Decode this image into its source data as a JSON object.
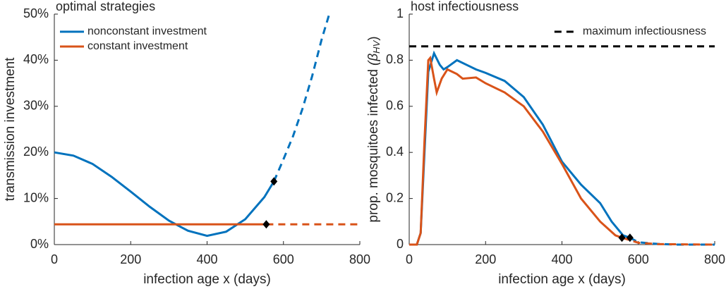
{
  "chart_data": [
    {
      "type": "line",
      "title": "optimal strategies",
      "xlabel": "infection age x (days)",
      "ylabel": "transmission investment",
      "xlim": [
        0,
        800
      ],
      "xticks": [
        0,
        200,
        400,
        600,
        800
      ],
      "ylim": [
        0,
        50
      ],
      "yticks": [
        {
          "value": 0,
          "label": "0%"
        },
        {
          "value": 10,
          "label": "10%"
        },
        {
          "value": 20,
          "label": "20%"
        },
        {
          "value": 30,
          "label": "30%"
        },
        {
          "value": 40,
          "label": "40%"
        },
        {
          "value": 50,
          "label": "50%"
        }
      ],
      "legend": "upper left",
      "series": [
        {
          "name": "nonconstant investment",
          "color": "#0072BD",
          "x": [
            0,
            50,
            100,
            150,
            200,
            250,
            300,
            350,
            400,
            450,
            500,
            550,
            575
          ],
          "values": [
            20,
            19.3,
            17.5,
            14.7,
            11.5,
            8.2,
            5.2,
            3,
            1.9,
            2.8,
            5.5,
            10.3,
            13.7
          ],
          "extension": {
            "x": [
              575,
              600,
              625,
              650,
              675,
              700,
              720
            ],
            "values": [
              13.7,
              18.5,
              23.5,
              29.5,
              36.5,
              44.5,
              50
            ]
          },
          "marker": {
            "x": 575,
            "y": 13.7
          }
        },
        {
          "name": "constant investment",
          "color": "#D95319",
          "x": [
            0,
            555
          ],
          "values": [
            4.4,
            4.4
          ],
          "extension": {
            "x": [
              555,
              800
            ],
            "values": [
              4.4,
              4.4
            ]
          },
          "marker": {
            "x": 555,
            "y": 4.4
          }
        }
      ]
    },
    {
      "type": "line",
      "title": "host infectiousness",
      "xlabel": "infection age x (days)",
      "ylabel": "prop. mosquitoes infected",
      "ylabel_symbol": "(β",
      "ylabel_subscript": "HV",
      "ylabel_close": ")",
      "xlim": [
        0,
        800
      ],
      "xticks": [
        0,
        200,
        400,
        600,
        800
      ],
      "ylim": [
        0,
        1
      ],
      "yticks": [
        0,
        0.2,
        0.4,
        0.6,
        0.8,
        1
      ],
      "legend": "upper right",
      "threshold": {
        "name": "maximum infectiousness",
        "value": 0.86,
        "color": "#000000"
      },
      "series": [
        {
          "color": "#0072BD",
          "x": [
            0,
            20,
            30,
            40,
            50,
            65,
            80,
            90,
            100,
            125,
            150,
            175,
            200,
            250,
            300,
            350,
            400,
            450,
            500,
            530,
            560,
            578
          ],
          "values": [
            0,
            0,
            0.05,
            0.4,
            0.75,
            0.83,
            0.78,
            0.76,
            0.77,
            0.8,
            0.78,
            0.76,
            0.745,
            0.71,
            0.64,
            0.52,
            0.36,
            0.26,
            0.18,
            0.1,
            0.04,
            0.03
          ],
          "extension": {
            "x": [
              578,
              600,
              650,
              700,
              800
            ],
            "values": [
              0.03,
              0.01,
              0.003,
              0,
              0
            ]
          },
          "marker": {
            "x": 578,
            "y": 0.03
          }
        },
        {
          "color": "#D95319",
          "x": [
            0,
            20,
            30,
            40,
            50,
            55,
            65,
            72,
            85,
            100,
            125,
            140,
            175,
            200,
            250,
            300,
            350,
            400,
            450,
            500,
            540,
            557
          ],
          "values": [
            0,
            0,
            0.05,
            0.45,
            0.8,
            0.81,
            0.72,
            0.66,
            0.72,
            0.76,
            0.74,
            0.72,
            0.725,
            0.7,
            0.66,
            0.6,
            0.49,
            0.35,
            0.2,
            0.1,
            0.04,
            0.03
          ],
          "extension": {
            "x": [
              557,
              600,
              650,
              800
            ],
            "values": [
              0.03,
              0.008,
              0.002,
              0
            ]
          },
          "marker": {
            "x": 557,
            "y": 0.03
          }
        }
      ]
    }
  ]
}
